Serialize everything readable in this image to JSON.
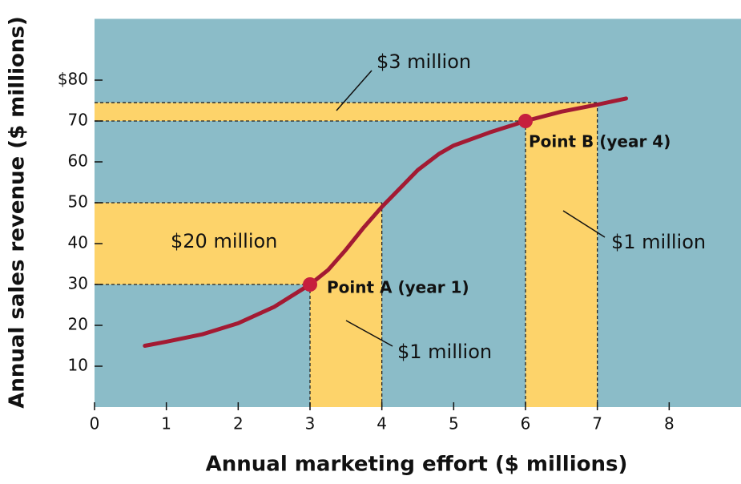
{
  "chart_data": {
    "type": "line",
    "x_label": "Annual marketing effort ($ millions)",
    "y_label": "Annual sales revenue ($ millions)",
    "xlim": [
      0,
      9
    ],
    "ylim": [
      0,
      95
    ],
    "xticks": [
      0,
      1,
      2,
      3,
      4,
      5,
      6,
      7,
      8
    ],
    "yticks": [
      10,
      20,
      30,
      40,
      50,
      60,
      70,
      {
        "value": 80,
        "label": "$80"
      }
    ],
    "background": "#8bbcc8",
    "region_color": "#fdd36a",
    "series": [
      {
        "color": "#a31a33",
        "x": [
          0.7,
          1,
          1.5,
          2,
          2.5,
          3,
          3.25,
          3.5,
          3.75,
          4,
          4.25,
          4.5,
          4.8,
          5,
          5.5,
          6,
          6.5,
          7,
          7.4
        ],
        "values": [
          15,
          16,
          17.8,
          20.5,
          24.5,
          30,
          33.5,
          38.5,
          44,
          49,
          53.5,
          58,
          62,
          64,
          67.2,
          70,
          72.3,
          74,
          75.5
        ]
      }
    ],
    "regions": [
      {
        "x": [
          3,
          4
        ],
        "y": [
          30,
          50
        ]
      },
      {
        "x": [
          6,
          7
        ],
        "y": [
          70,
          74.5
        ]
      }
    ],
    "points": [
      {
        "label": "Point A (year 1)",
        "x": 3,
        "y": 30,
        "color": "#c61f3d"
      },
      {
        "label": "Point B (year 4)",
        "x": 6,
        "y": 70,
        "color": "#c61f3d"
      }
    ],
    "annotations": [
      "$3 million",
      "$20 million",
      "$1 million",
      "$1 million"
    ]
  }
}
